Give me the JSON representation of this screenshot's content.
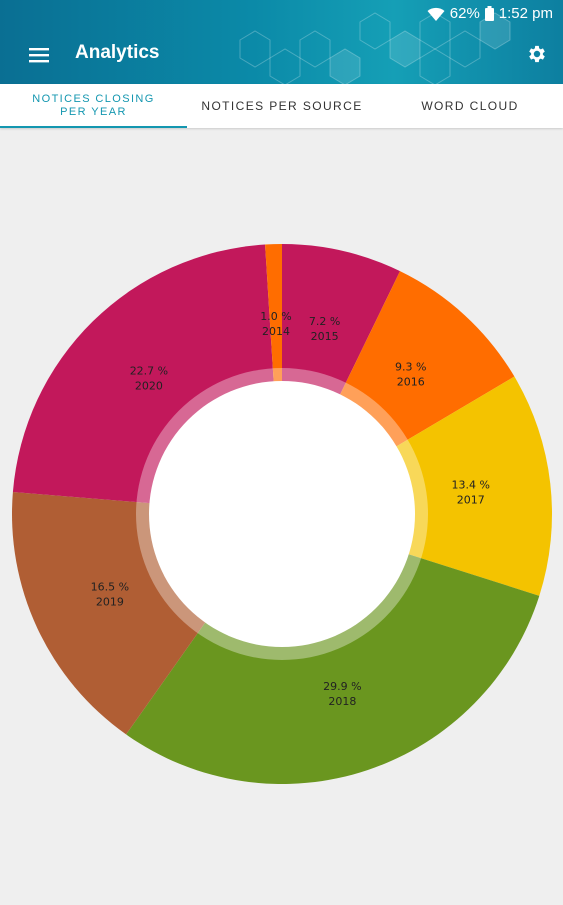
{
  "status_bar": {
    "battery": "62%",
    "time": "1:52 pm",
    "icons": [
      "wifi-icon",
      "battery-icon"
    ]
  },
  "toolbar": {
    "title": "Analytics",
    "menu_icon": "hamburger-menu-icon",
    "settings_icon": "gear-icon"
  },
  "tabs": [
    {
      "label": "NOTICES CLOSING PER YEAR",
      "active": true
    },
    {
      "label": "NOTICES PER SOURCE",
      "active": false
    },
    {
      "label": "WORD CLOUD",
      "active": false
    }
  ],
  "colors": {
    "accent": "#1497b0",
    "appbar": "#0b8aa8"
  },
  "chart_data": {
    "type": "pie",
    "style": "donut",
    "slices": [
      {
        "label": "2015",
        "value": 7.2,
        "display": "7.2 %",
        "color": "#c2185b"
      },
      {
        "label": "2016",
        "value": 9.3,
        "display": "9.3 %",
        "color": "#ff6d00"
      },
      {
        "label": "2017",
        "value": 13.4,
        "display": "13.4 %",
        "color": "#f4c300"
      },
      {
        "label": "2018",
        "value": 29.9,
        "display": "29.9 %",
        "color": "#6a961f"
      },
      {
        "label": "2019",
        "value": 16.5,
        "display": "16.5 %",
        "color": "#b05e34"
      },
      {
        "label": "2020",
        "value": 22.7,
        "display": "22.7 %",
        "color": "#c2185b"
      },
      {
        "label": "2014",
        "value": 1.0,
        "display": "1.0 %",
        "color": "#ff6d00"
      }
    ]
  }
}
